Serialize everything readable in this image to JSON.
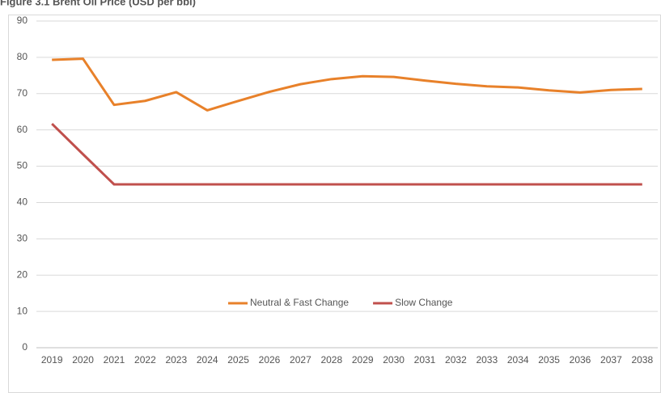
{
  "chart_data": {
    "type": "line",
    "title": "Figure 3.1 Brent Oil Price (USD per bbl)",
    "categories": [
      "2019",
      "2020",
      "2021",
      "2022",
      "2023",
      "2024",
      "2025",
      "2026",
      "2027",
      "2028",
      "2029",
      "2030",
      "2031",
      "2032",
      "2033",
      "2034",
      "2035",
      "2036",
      "2037",
      "2038"
    ],
    "series": [
      {
        "name": "Neutral & Fast Change",
        "color": "#e8812a",
        "values": [
          79.3,
          79.6,
          66.9,
          68.0,
          70.4,
          65.4,
          68.0,
          70.5,
          72.6,
          74.0,
          74.8,
          74.6,
          73.6,
          72.7,
          72.0,
          71.7,
          70.9,
          70.3,
          71.0,
          71.3
        ]
      },
      {
        "name": "Slow Change",
        "color": "#c0504d",
        "values": [
          61.7,
          53.3,
          45,
          45,
          45,
          45,
          45,
          45,
          45,
          45,
          45,
          45,
          45,
          45,
          45,
          45,
          45,
          45,
          45,
          45
        ]
      }
    ],
    "ylim": [
      0,
      90
    ],
    "yticks": [
      0,
      10,
      20,
      30,
      40,
      50,
      60,
      70,
      80,
      90
    ],
    "grid": true
  }
}
